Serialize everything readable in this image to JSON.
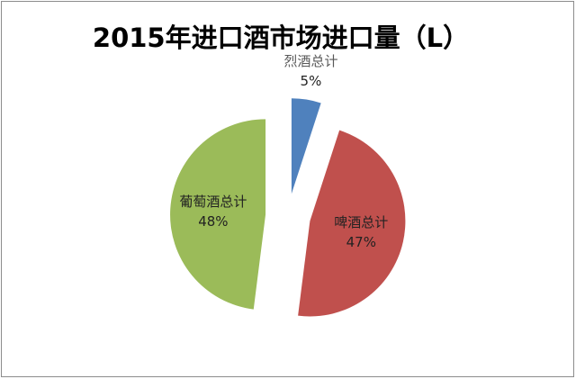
{
  "chart_data": {
    "type": "pie",
    "title": "2015年进口酒市场进口量（L）",
    "categories": [
      "烈酒总计",
      "啤酒总计",
      "葡萄酒总计"
    ],
    "values": [
      5,
      47,
      48
    ],
    "value_labels": [
      "5%",
      "47%",
      "48%"
    ],
    "colors": [
      "#4f81bd",
      "#c0504d",
      "#9bbb59"
    ]
  }
}
